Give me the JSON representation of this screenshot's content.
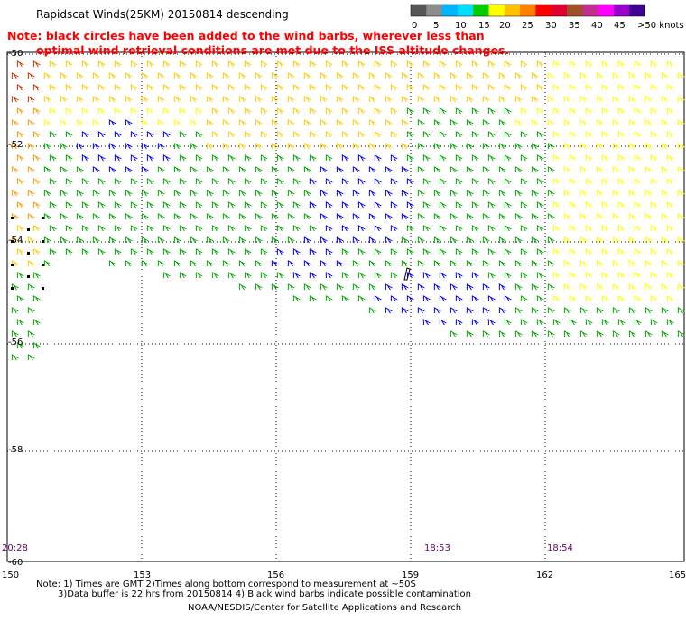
{
  "title": "Rapidscat Winds(25KM) 20150814 descending",
  "note_lines": [
    "Note: black circles have been added to the wind barbs, wherever less than",
    "optimal wind retrieval conditions are met due to the ISS altitude changes."
  ],
  "legend": {
    "labels": [
      "0",
      "5",
      "10",
      "15",
      "20",
      "25",
      "30",
      "35",
      "40",
      "45",
      ">50 knots"
    ],
    "colors": [
      "#555555",
      "#8c8c8c",
      "#00b4ff",
      "#00ddff",
      "#00cc00",
      "#ffff00",
      "#ffc000",
      "#ff7f00",
      "#ff0000",
      "#e00030",
      "#a05028",
      "#c03090",
      "#ff00ff",
      "#9900cc",
      "#400090"
    ]
  },
  "lat_labels": [
    "-50",
    "-52",
    "-54",
    "-56",
    "-58",
    "-60"
  ],
  "lon_labels": [
    "150",
    "153",
    "156",
    "159",
    "162",
    "165"
  ],
  "time_labels": [
    "20:28",
    "18:53",
    "18:54"
  ],
  "footer_lines": [
    "Note: 1) Times are GMT 2)Times along bottom correspond to measurement at ~50S",
    "3)Data buffer is 22 hrs from 20150814 4) Black wind barbs indicate possible contamination",
    "NOAA/NESDIS/Center for Satellite Applications and Research"
  ],
  "colors": {
    "calm": "#0000ff",
    "light": "#00aa00",
    "moderate": "#ffff00",
    "fresh": "#ffcc00",
    "strong": "#ff9900",
    "gale": "#cc3300",
    "flag": "#000000"
  }
}
